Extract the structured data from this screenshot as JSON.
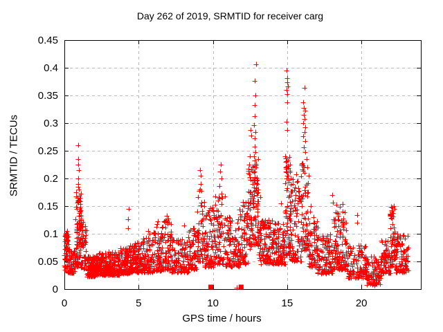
{
  "chart_data": {
    "type": "scatter",
    "title": "Day 262 of 2019, SRMTID for receiver carg",
    "xlabel": "GPS time / hours",
    "ylabel": "SRMTID / TECUs",
    "xlim": [
      0,
      24
    ],
    "ylim": [
      0,
      0.45
    ],
    "xticks": [
      0,
      5,
      10,
      15,
      20
    ],
    "yticks": [
      0,
      0.05,
      0.1,
      0.15,
      0.2,
      0.25,
      0.3,
      0.35,
      0.4,
      0.45
    ],
    "grid": true,
    "grid_style": "dashed",
    "legend": "none",
    "colors": {
      "marker": "#ff0000",
      "grid": "#b8b8b8",
      "axis": "#000000",
      "background": "#ffffff",
      "text": "#000000"
    },
    "seed": 20190262,
    "bins_format": [
      "x_start",
      "x_end",
      "count",
      "y_min",
      "y_max",
      "skew"
    ],
    "series": [
      {
        "name": "SRMTID",
        "marker": "plus",
        "density_bins": [
          [
            0.0,
            0.35,
            70,
            0.03,
            0.105,
            1.2
          ],
          [
            0.35,
            0.75,
            45,
            0.028,
            0.07,
            1.5
          ],
          [
            0.75,
            1.15,
            90,
            0.04,
            0.175,
            1.1
          ],
          [
            1.1,
            1.5,
            55,
            0.035,
            0.13,
            1.6
          ],
          [
            1.5,
            2.1,
            110,
            0.022,
            0.06,
            1.5
          ],
          [
            2.1,
            2.9,
            140,
            0.025,
            0.065,
            1.5
          ],
          [
            2.9,
            3.7,
            130,
            0.025,
            0.068,
            1.5
          ],
          [
            3.7,
            4.4,
            100,
            0.028,
            0.075,
            1.7
          ],
          [
            4.4,
            5.1,
            95,
            0.03,
            0.085,
            1.8
          ],
          [
            5.1,
            6.0,
            110,
            0.03,
            0.095,
            1.9
          ],
          [
            6.0,
            6.6,
            65,
            0.032,
            0.115,
            1.9
          ],
          [
            6.6,
            7.2,
            65,
            0.035,
            0.125,
            1.9
          ],
          [
            7.2,
            8.4,
            110,
            0.03,
            0.095,
            1.8
          ],
          [
            8.4,
            8.95,
            60,
            0.035,
            0.11,
            1.7
          ],
          [
            8.95,
            9.45,
            55,
            0.05,
            0.18,
            1.5
          ],
          [
            9.45,
            10.05,
            70,
            0.04,
            0.15,
            1.8
          ],
          [
            10.05,
            10.85,
            85,
            0.045,
            0.17,
            1.8
          ],
          [
            10.85,
            11.75,
            95,
            0.04,
            0.13,
            1.6
          ],
          [
            11.75,
            12.35,
            65,
            0.045,
            0.16,
            1.6
          ],
          [
            12.35,
            12.65,
            45,
            0.07,
            0.22,
            1.2
          ],
          [
            12.65,
            13.05,
            75,
            0.08,
            0.24,
            1.3
          ],
          [
            13.05,
            14.35,
            160,
            0.045,
            0.125,
            1.5
          ],
          [
            14.35,
            14.85,
            65,
            0.045,
            0.12,
            1.6
          ],
          [
            14.85,
            15.25,
            75,
            0.06,
            0.24,
            1.4
          ],
          [
            15.25,
            15.95,
            75,
            0.05,
            0.2,
            1.8
          ],
          [
            15.95,
            16.45,
            65,
            0.07,
            0.23,
            1.5
          ],
          [
            16.45,
            17.05,
            70,
            0.04,
            0.13,
            1.7
          ],
          [
            17.05,
            18.05,
            100,
            0.028,
            0.1,
            1.7
          ],
          [
            18.05,
            18.65,
            70,
            0.035,
            0.15,
            1.9
          ],
          [
            18.65,
            19.05,
            50,
            0.035,
            0.14,
            2.0
          ],
          [
            19.05,
            20.35,
            115,
            0.02,
            0.08,
            1.7
          ],
          [
            20.35,
            21.35,
            95,
            0.008,
            0.06,
            1.5
          ],
          [
            21.35,
            21.95,
            60,
            0.028,
            0.09,
            1.7
          ],
          [
            21.95,
            22.25,
            50,
            0.04,
            0.15,
            1.7
          ],
          [
            22.25,
            23.15,
            95,
            0.03,
            0.1,
            1.6
          ]
        ],
        "peak_points": [
          [
            0.93,
            0.26
          ],
          [
            0.95,
            0.235
          ],
          [
            0.93,
            0.225
          ],
          [
            0.96,
            0.215
          ],
          [
            0.94,
            0.2
          ],
          [
            0.92,
            0.19
          ],
          [
            0.95,
            0.185
          ],
          [
            0.97,
            0.18
          ],
          [
            0.9,
            0.165
          ],
          [
            0.95,
            0.158
          ],
          [
            1.05,
            0.14
          ],
          [
            1.1,
            0.128
          ],
          [
            1.15,
            0.118
          ],
          [
            1.2,
            0.112
          ],
          [
            0.3,
            0.095
          ],
          [
            0.25,
            0.088
          ],
          [
            4.35,
            0.145
          ],
          [
            4.3,
            0.126
          ],
          [
            4.28,
            0.11
          ],
          [
            5.65,
            0.105
          ],
          [
            5.75,
            0.1
          ],
          [
            6.3,
            0.122
          ],
          [
            6.25,
            0.118
          ],
          [
            6.9,
            0.132
          ],
          [
            7.0,
            0.127
          ],
          [
            6.95,
            0.118
          ],
          [
            8.05,
            0.115
          ],
          [
            8.65,
            0.11
          ],
          [
            8.75,
            0.105
          ],
          [
            9.15,
            0.215
          ],
          [
            9.2,
            0.205
          ],
          [
            9.17,
            0.19
          ],
          [
            9.1,
            0.178
          ],
          [
            10.55,
            0.225
          ],
          [
            10.5,
            0.212
          ],
          [
            10.6,
            0.2
          ],
          [
            10.45,
            0.186
          ],
          [
            10.58,
            0.172
          ],
          [
            11.6,
            0.002
          ],
          [
            12.55,
            0.288
          ],
          [
            12.6,
            0.278
          ],
          [
            12.5,
            0.24
          ],
          [
            12.45,
            0.225
          ],
          [
            12.4,
            0.21
          ],
          [
            12.9,
            0.406
          ],
          [
            12.8,
            0.376
          ],
          [
            12.84,
            0.35
          ],
          [
            12.8,
            0.332
          ],
          [
            12.83,
            0.312
          ],
          [
            12.79,
            0.296
          ],
          [
            12.85,
            0.284
          ],
          [
            12.8,
            0.272
          ],
          [
            12.82,
            0.258
          ],
          [
            12.86,
            0.248
          ],
          [
            12.78,
            0.24
          ],
          [
            13.2,
            0.166
          ],
          [
            14.6,
            0.155
          ],
          [
            14.97,
            0.395
          ],
          [
            15.0,
            0.381
          ],
          [
            14.99,
            0.374
          ],
          [
            15.03,
            0.366
          ],
          [
            14.98,
            0.36
          ],
          [
            15.0,
            0.352
          ],
          [
            15.02,
            0.337
          ],
          [
            14.96,
            0.302
          ],
          [
            15.0,
            0.287
          ],
          [
            15.04,
            0.232
          ],
          [
            14.95,
            0.218
          ],
          [
            15.6,
            0.208
          ],
          [
            15.7,
            0.195
          ],
          [
            15.75,
            0.182
          ],
          [
            15.55,
            0.17
          ],
          [
            16.17,
            0.364
          ],
          [
            16.1,
            0.338
          ],
          [
            16.14,
            0.328
          ],
          [
            16.2,
            0.322
          ],
          [
            16.12,
            0.315
          ],
          [
            16.18,
            0.308
          ],
          [
            16.1,
            0.3
          ],
          [
            16.22,
            0.292
          ],
          [
            16.15,
            0.284
          ],
          [
            16.1,
            0.276
          ],
          [
            16.2,
            0.268
          ],
          [
            16.13,
            0.256
          ],
          [
            16.24,
            0.248
          ],
          [
            16.3,
            0.235
          ],
          [
            16.05,
            0.228
          ],
          [
            16.6,
            0.15
          ],
          [
            16.55,
            0.14
          ],
          [
            18.05,
            0.17
          ],
          [
            18.1,
            0.156
          ],
          [
            18.3,
            0.152
          ],
          [
            18.35,
            0.138
          ],
          [
            18.45,
            0.125
          ],
          [
            18.75,
            0.154
          ],
          [
            18.72,
            0.14
          ],
          [
            18.78,
            0.127
          ],
          [
            18.8,
            0.112
          ],
          [
            19.7,
            0.134
          ],
          [
            19.72,
            0.12
          ],
          [
            20.9,
            0.006
          ],
          [
            20.95,
            0.012
          ],
          [
            22.0,
            0.149
          ],
          [
            22.05,
            0.143
          ],
          [
            21.97,
            0.136
          ],
          [
            22.02,
            0.128
          ],
          [
            22.08,
            0.118
          ],
          [
            21.95,
            0.11
          ]
        ]
      },
      {
        "name": "flag markers",
        "marker": "filled-square",
        "points": [
          [
            9.86,
            0
          ],
          [
            11.9,
            0
          ]
        ]
      }
    ]
  }
}
